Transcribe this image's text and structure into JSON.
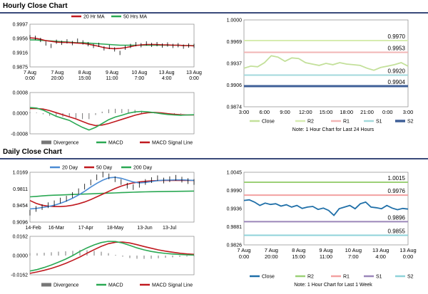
{
  "sections": {
    "hourly_title": "Hourly Close Chart",
    "daily_title": "Daily Close Chart"
  },
  "colors": {
    "ma20": "#c0191f",
    "ma50": "#2aa853",
    "price": "#000000",
    "macd": "#2aa853",
    "signal": "#c0191f",
    "divergence": "#777777",
    "close_light": "#c3e09a",
    "close_dark": "#1f6fa8",
    "r2": "#d7ecb0",
    "r1": "#f2b5b5",
    "s1": "#a3d9dc",
    "s2": "#3f5f97",
    "r2_daily": "#9cd077",
    "r1_daily": "#f3a1a1",
    "s1_daily": "#9b86b9",
    "s2_daily": "#8fd3d9",
    "ma20_daily": "#4a8bd4",
    "ma50_daily": "#c0191f",
    "ma200_daily": "#2aa853"
  },
  "chart_data": [
    {
      "id": "hourly_price",
      "type": "line",
      "legend": [
        "20 Hr MA",
        "50 Hrs MA"
      ],
      "yticks": [
        "0.9997",
        "0.9956",
        "0.9916",
        "0.9875"
      ],
      "ylim": [
        0.9875,
        0.9997
      ],
      "xticks": [
        [
          "7 Aug",
          "0:00"
        ],
        [
          "7 Aug",
          "20:00"
        ],
        [
          "8 Aug",
          "15:00"
        ],
        [
          "9 Aug",
          "11:00"
        ],
        [
          "10 Aug",
          "7:00"
        ],
        [
          "13 Aug",
          "4:00"
        ],
        [
          "13 Aug",
          "0:00"
        ]
      ],
      "close": [
        0.996,
        0.9958,
        0.9952,
        0.9942,
        0.9935,
        0.9947,
        0.9944,
        0.9948,
        0.9943,
        0.995,
        0.9945,
        0.994,
        0.9935,
        0.9938,
        0.9928,
        0.9932,
        0.9925,
        0.9915,
        0.993,
        0.9935,
        0.994,
        0.9937,
        0.9942,
        0.9938,
        0.994,
        0.9936,
        0.9939,
        0.9935,
        0.9937,
        0.9933,
        0.9936,
        0.9935
      ],
      "ma20": [
        0.9958,
        0.9957,
        0.9954,
        0.995,
        0.9948,
        0.9946,
        0.9945,
        0.9945,
        0.9944,
        0.9943,
        0.9942,
        0.994,
        0.9937,
        0.9934,
        0.993,
        0.9928,
        0.9927,
        0.9928,
        0.993,
        0.9933,
        0.9936,
        0.9938,
        0.9939,
        0.9939,
        0.9939,
        0.9938,
        0.9938,
        0.9937,
        0.9937,
        0.9936,
        0.9936,
        0.9935
      ],
      "ma50": [
        0.9952,
        0.9952,
        0.9951,
        0.995,
        0.9949,
        0.9948,
        0.9947,
        0.9946,
        0.9945,
        0.9944,
        0.9944,
        0.9943,
        0.9942,
        0.9941,
        0.994,
        0.9939,
        0.9938,
        0.9937,
        0.9937,
        0.9937,
        0.9937,
        0.9937,
        0.9937,
        0.9937,
        0.9937,
        0.9937,
        0.9937,
        0.9937,
        0.9937,
        0.9936,
        0.9936,
        0.9936
      ]
    },
    {
      "id": "hourly_macd",
      "type": "line",
      "yticks": [
        "0.0008",
        "0.0000",
        "-0.0008"
      ],
      "ylim": [
        -0.0008,
        0.0008
      ],
      "legend": [
        "Divergence",
        "MACD",
        "MACD Signal Line"
      ],
      "macd": [
        0.00022,
        0.0002,
        0.00012,
        0.0,
        -0.00012,
        -0.0002,
        -0.00028,
        -0.00042,
        -0.00055,
        -0.00065,
        -0.00055,
        -0.0004,
        -0.00025,
        -0.00015,
        -8e-05,
        0.0,
        5e-05,
        7e-05,
        5e-05,
        2e-05,
        -2e-05,
        -5e-05,
        -7e-05,
        -8e-05,
        -7e-05,
        -6e-05
      ],
      "signal": [
        0.00018,
        0.00018,
        0.00016,
        0.0001,
        2e-05,
        -6e-05,
        -0.00014,
        -0.00022,
        -0.00032,
        -0.00042,
        -0.00048,
        -0.00046,
        -0.0004,
        -0.00032,
        -0.00024,
        -0.00016,
        -8e-05,
        -2e-05,
        2e-05,
        3e-05,
        1e-05,
        -2e-05,
        -4e-05,
        -6e-05,
        -7e-05,
        -7e-05
      ],
      "divergence": [
        4e-05,
        2e-05,
        -4e-05,
        -0.0001,
        -0.00014,
        -0.00014,
        -0.00014,
        -0.0002,
        -0.00023,
        -0.00023,
        -7e-05,
        6e-05,
        0.00015,
        0.00017,
        0.00016,
        0.00016,
        0.00013,
        9e-05,
        3e-05,
        -1e-05,
        -3e-05,
        -3e-05,
        -3e-05,
        -2e-05,
        0.0,
        1e-05
      ]
    },
    {
      "id": "hourly_pivots",
      "type": "line",
      "yticks": [
        "1.0000",
        "0.9969",
        "0.9937",
        "0.9906",
        "0.9874"
      ],
      "ylim": [
        0.9874,
        1.0
      ],
      "xticks": [
        "3:00",
        "6:00",
        "9:00",
        "12:00",
        "15:00",
        "18:00",
        "21:00",
        "0:00",
        "3:00"
      ],
      "levels": [
        {
          "name": "R2",
          "value": 0.997,
          "label": "0.9970"
        },
        {
          "name": "R1",
          "value": 0.9953,
          "label": "0.9953"
        },
        {
          "name": "S1",
          "value": 0.992,
          "label": "0.9920"
        },
        {
          "name": "S2",
          "value": 0.9904,
          "label": "0.9904"
        }
      ],
      "close": [
        0.993,
        0.9933,
        0.9932,
        0.9938,
        0.9948,
        0.9946,
        0.994,
        0.9945,
        0.9944,
        0.9938,
        0.9936,
        0.9934,
        0.9937,
        0.9935,
        0.9938,
        0.9936,
        0.9935,
        0.9934,
        0.993,
        0.9927,
        0.9931,
        0.9933,
        0.9935,
        0.9938,
        0.9933
      ],
      "legend": [
        "Close",
        "R2",
        "R1",
        "S1",
        "S2"
      ],
      "note": "Note: 1 Hour Chart for Last 24 Hours"
    },
    {
      "id": "daily_price",
      "type": "line",
      "legend": [
        "20 Day",
        "50 Day",
        "200 Day"
      ],
      "yticks": [
        "1.0169",
        "0.9811",
        "0.9454",
        "0.9096"
      ],
      "ylim": [
        0.9096,
        1.0169
      ],
      "xticks": [
        "14-Feb",
        "16-Mar",
        "17-Apr",
        "18-May",
        "13-Jun",
        "13-Jul"
      ],
      "close": [
        0.93,
        0.938,
        0.942,
        0.946,
        0.95,
        0.956,
        0.96,
        0.968,
        0.976,
        0.986,
        0.995,
        1.006,
        1.012,
        1.008,
        1.002,
        0.996,
        0.988,
        0.985,
        0.99,
        0.996,
        1.0,
        1.004,
        0.999,
        1.002,
        1.005,
        1.001,
        0.998,
        0.996
      ],
      "ma20": [
        0.938,
        0.939,
        0.941,
        0.943,
        0.946,
        0.95,
        0.955,
        0.961,
        0.968,
        0.976,
        0.985,
        0.993,
        1.0,
        1.005,
        1.006,
        1.004,
        1.0,
        0.996,
        0.994,
        0.995,
        0.997,
        0.999,
        1.0,
        1.0,
        1.0005,
        1.0005,
        1.0,
        0.9995
      ],
      "ma50": [
        0.956,
        0.95,
        0.946,
        0.944,
        0.943,
        0.943,
        0.944,
        0.946,
        0.949,
        0.953,
        0.958,
        0.964,
        0.97,
        0.976,
        0.982,
        0.987,
        0.991,
        0.994,
        0.996,
        0.9975,
        0.9985,
        0.999,
        0.9992,
        0.9994,
        0.9995,
        0.9995,
        0.9995,
        0.9995
      ],
      "ma200": [
        0.964,
        0.965,
        0.966,
        0.967,
        0.9675,
        0.968,
        0.9685,
        0.969,
        0.9695,
        0.97,
        0.9705,
        0.971,
        0.9715,
        0.972,
        0.9725,
        0.973,
        0.9735,
        0.974,
        0.9745,
        0.9748,
        0.975,
        0.9752,
        0.9754,
        0.9756,
        0.9758,
        0.976,
        0.9762,
        0.9764
      ]
    },
    {
      "id": "daily_macd",
      "type": "line",
      "yticks": [
        "0.0162",
        "0.0000",
        "-0.0162"
      ],
      "ylim": [
        -0.0162,
        0.0162
      ],
      "legend": [
        "Divergence",
        "MACD",
        "MACD Signal Line"
      ],
      "macd": [
        -0.013,
        -0.0118,
        -0.01,
        -0.008,
        -0.0055,
        -0.003,
        0.0,
        0.0035,
        0.0065,
        0.009,
        0.011,
        0.012,
        0.0118,
        0.0105,
        0.0085,
        0.0065,
        0.0048,
        0.0035,
        0.0025,
        0.0018,
        0.0013,
        0.0009,
        0.0006,
        0.0004
      ],
      "signal": [
        -0.015,
        -0.0138,
        -0.0124,
        -0.0108,
        -0.0088,
        -0.0066,
        -0.004,
        -0.0012,
        0.002,
        0.005,
        0.0078,
        0.01,
        0.0112,
        0.0114,
        0.0106,
        0.0092,
        0.0076,
        0.0062,
        0.0048,
        0.0037,
        0.0028,
        0.002,
        0.0014,
        0.001
      ],
      "divergence": [
        0.002,
        0.002,
        0.0024,
        0.0028,
        0.0033,
        0.0036,
        0.004,
        0.0047,
        0.0045,
        0.004,
        0.0032,
        0.002,
        0.0006,
        -0.0009,
        -0.0021,
        -0.0027,
        -0.0028,
        -0.0027,
        -0.0023,
        -0.0019,
        -0.0015,
        -0.0011,
        -0.0008,
        -0.0006
      ]
    },
    {
      "id": "weekly_pivots",
      "type": "line",
      "yticks": [
        "1.0045",
        "0.9990",
        "0.9936",
        "0.9881",
        "0.9826"
      ],
      "ylim": [
        0.9826,
        1.0045
      ],
      "xticks": [
        [
          "7 Aug",
          "0:00"
        ],
        [
          "7 Aug",
          "20:00"
        ],
        [
          "8 Aug",
          "15:00"
        ],
        [
          "9 Aug",
          "11:00"
        ],
        [
          "10 Aug",
          "7:00"
        ],
        [
          "13 Aug",
          "4:00"
        ],
        [
          "13 Aug",
          "0:00"
        ]
      ],
      "levels": [
        {
          "name": "R2",
          "value": 1.0015,
          "label": "1.0015"
        },
        {
          "name": "R1",
          "value": 0.9976,
          "label": "0.9976"
        },
        {
          "name": "S1",
          "value": 0.9896,
          "label": "0.9896"
        },
        {
          "name": "S2",
          "value": 0.9855,
          "label": "0.9855"
        }
      ],
      "close": [
        0.996,
        0.9962,
        0.9955,
        0.9945,
        0.9952,
        0.9948,
        0.995,
        0.9943,
        0.9947,
        0.994,
        0.9945,
        0.9936,
        0.994,
        0.9942,
        0.9933,
        0.9937,
        0.993,
        0.9915,
        0.9935,
        0.994,
        0.9945,
        0.9935,
        0.995,
        0.9955,
        0.994,
        0.9938,
        0.9935,
        0.9945,
        0.9937,
        0.9932,
        0.9936,
        0.9934
      ],
      "legend": [
        "Close",
        "R2",
        "R1",
        "S1",
        "S2"
      ],
      "note": "Note: 1 Hour Chart for Last 1 Week"
    }
  ]
}
